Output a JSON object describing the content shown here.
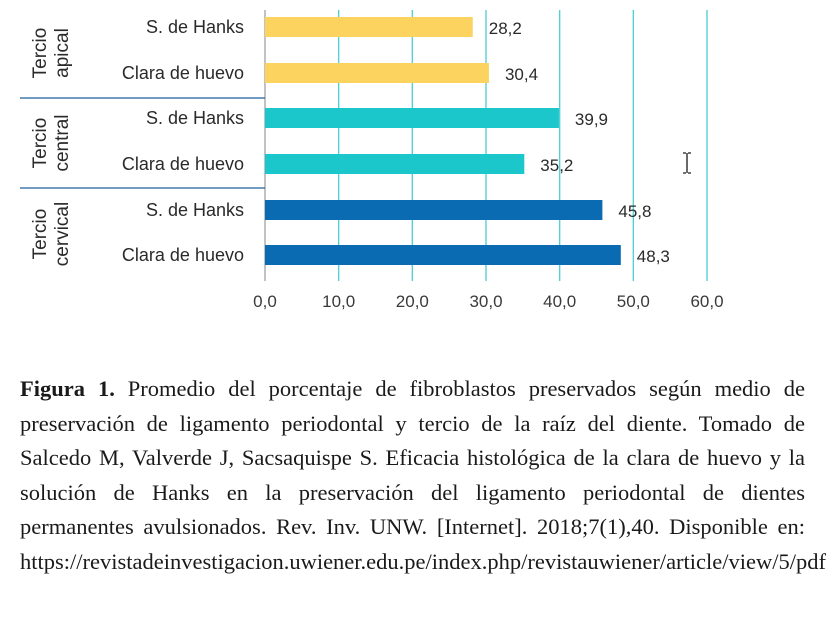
{
  "chart_data": {
    "type": "bar",
    "orientation": "horizontal",
    "xlim": [
      0,
      60
    ],
    "xticks": [
      "0,0",
      "10,0",
      "20,0",
      "30,0",
      "40,0",
      "50,0",
      "60,0"
    ],
    "grid": "vertical",
    "groups": [
      {
        "label_line1": "Tercio",
        "label_line2": "apical",
        "color": "#FBD35E",
        "bars": [
          {
            "category": "S. de Hanks",
            "value": 28.2,
            "label": "28,2"
          },
          {
            "category": "Clara de huevo",
            "value": 30.4,
            "label": "30,4"
          }
        ]
      },
      {
        "label_line1": "Tercio",
        "label_line2": "central",
        "color": "#1CC7CC",
        "bars": [
          {
            "category": "S. de Hanks",
            "value": 39.9,
            "label": "39,9"
          },
          {
            "category": "Clara de huevo",
            "value": 35.2,
            "label": "35,2"
          }
        ]
      },
      {
        "label_line1": "Tercio",
        "label_line2": "cervical",
        "color": "#0A6BB3",
        "bars": [
          {
            "category": "S. de Hanks",
            "value": 45.8,
            "label": "45,8"
          },
          {
            "category": "Clara de huevo",
            "value": 48.3,
            "label": "48,3"
          }
        ]
      }
    ]
  },
  "caption": {
    "bold": "Figura 1.",
    "text": " Promedio del porcentaje de fibroblastos preservados según medio de preservación de ligamento periodontal y tercio de la raíz del diente. Tomado de Salcedo M, Valverde J, Sacsaquispe S. Eficacia histológica de la clara de huevo y la solución de Hanks en la preservación del ligamento periodontal de dientes permanentes avulsionados. Rev. Inv. UNW. [Internet]. 2018;7(1),40. Disponible en: https://revistadeinvestigacion.uwiener.edu.pe/index.php/revistauwiener/article/view/5/pdf"
  },
  "icons": {
    "cursor": "text-cursor-icon"
  },
  "colors": {
    "gridline": "#55CFD6",
    "separator": "#1F5F9E"
  }
}
